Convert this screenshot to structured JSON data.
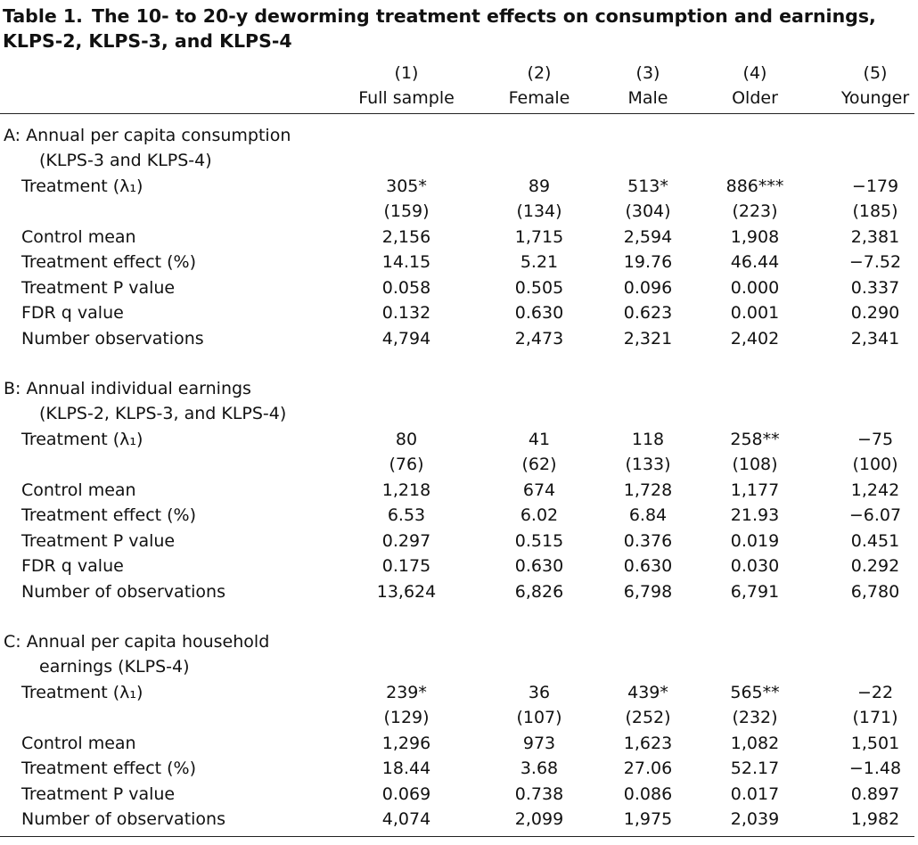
{
  "table": {
    "number": "Table 1.",
    "title": "The 10- to 20-y deworming treatment effects on consumption and earnings, KLPS-2, KLPS-3, and KLPS-4",
    "columns": [
      {
        "num": "(1)",
        "label": "Full sample"
      },
      {
        "num": "(2)",
        "label": "Female"
      },
      {
        "num": "(3)",
        "label": "Male"
      },
      {
        "num": "(4)",
        "label": "Older"
      },
      {
        "num": "(5)",
        "label": "Younger"
      }
    ],
    "panels": [
      {
        "title_line1": "A: Annual per capita consumption",
        "title_line2": "(KLPS-3 and KLPS-4)",
        "rows": [
          {
            "label": "Treatment (λ₁)",
            "values": [
              "305*",
              "89",
              "513*",
              "886***",
              "−179"
            ]
          },
          {
            "label": "",
            "values": [
              "(159)",
              "(134)",
              "(304)",
              "(223)",
              "(185)"
            ]
          },
          {
            "label": "Control mean",
            "values": [
              "2,156",
              "1,715",
              "2,594",
              "1,908",
              "2,381"
            ]
          },
          {
            "label": "Treatment effect (%)",
            "values": [
              "14.15",
              "5.21",
              "19.76",
              "46.44",
              "−7.52"
            ]
          },
          {
            "label": "Treatment P value",
            "values": [
              "0.058",
              "0.505",
              "0.096",
              "0.000",
              "0.337"
            ]
          },
          {
            "label": "FDR q value",
            "values": [
              "0.132",
              "0.630",
              "0.623",
              "0.001",
              "0.290"
            ]
          },
          {
            "label": "Number observations",
            "values": [
              "4,794",
              "2,473",
              "2,321",
              "2,402",
              "2,341"
            ]
          }
        ]
      },
      {
        "title_line1": "B: Annual individual earnings",
        "title_line2": "(KLPS-2, KLPS-3, and KLPS-4)",
        "rows": [
          {
            "label": "Treatment (λ₁)",
            "values": [
              "80",
              "41",
              "118",
              "258**",
              "−75"
            ]
          },
          {
            "label": "",
            "values": [
              "(76)",
              "(62)",
              "(133)",
              "(108)",
              "(100)"
            ]
          },
          {
            "label": "Control mean",
            "values": [
              "1,218",
              "674",
              "1,728",
              "1,177",
              "1,242"
            ]
          },
          {
            "label": "Treatment effect (%)",
            "values": [
              "6.53",
              "6.02",
              "6.84",
              "21.93",
              "−6.07"
            ]
          },
          {
            "label": "Treatment P value",
            "values": [
              "0.297",
              "0.515",
              "0.376",
              "0.019",
              "0.451"
            ]
          },
          {
            "label": "FDR q value",
            "values": [
              "0.175",
              "0.630",
              "0.630",
              "0.030",
              "0.292"
            ]
          },
          {
            "label": "Number of observations",
            "values": [
              "13,624",
              "6,826",
              "6,798",
              "6,791",
              "6,780"
            ]
          }
        ]
      },
      {
        "title_line1": "C: Annual per capita household",
        "title_line2": "earnings (KLPS-4)",
        "rows": [
          {
            "label": "Treatment (λ₁)",
            "values": [
              "239*",
              "36",
              "439*",
              "565**",
              "−22"
            ]
          },
          {
            "label": "",
            "values": [
              "(129)",
              "(107)",
              "(252)",
              "(232)",
              "(171)"
            ]
          },
          {
            "label": "Control mean",
            "values": [
              "1,296",
              "973",
              "1,623",
              "1,082",
              "1,501"
            ]
          },
          {
            "label": "Treatment effect (%)",
            "values": [
              "18.44",
              "3.68",
              "27.06",
              "52.17",
              "−1.48"
            ]
          },
          {
            "label": "Treatment P value",
            "values": [
              "0.069",
              "0.738",
              "0.086",
              "0.017",
              "0.897"
            ]
          },
          {
            "label": "Number of observations",
            "values": [
              "4,074",
              "2,099",
              "1,975",
              "2,039",
              "1,982"
            ]
          }
        ]
      }
    ]
  }
}
